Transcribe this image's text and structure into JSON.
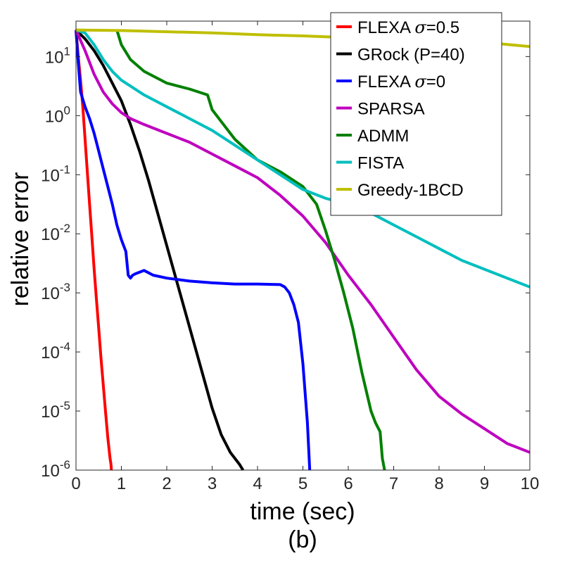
{
  "chart_data": {
    "type": "line",
    "title": "",
    "xlabel": "time (sec)",
    "ylabel": "relative error",
    "caption": "(b)",
    "xlim": [
      0,
      10
    ],
    "ylim_log10": [
      -6,
      1.6
    ],
    "yscale": "log",
    "grid": false,
    "legend_position": "top-right",
    "x_ticks": [
      "0",
      "1",
      "2",
      "3",
      "4",
      "5",
      "6",
      "7",
      "8",
      "9",
      "10"
    ],
    "y_ticks": [
      {
        "base": "10",
        "exp": "1"
      },
      {
        "base": "10",
        "exp": "0"
      },
      {
        "base": "10",
        "exp": "-1"
      },
      {
        "base": "10",
        "exp": "-2"
      },
      {
        "base": "10",
        "exp": "-3"
      },
      {
        "base": "10",
        "exp": "-4"
      },
      {
        "base": "10",
        "exp": "-5"
      },
      {
        "base": "10",
        "exp": "-6"
      }
    ],
    "series": [
      {
        "name": "FLEXA σ=0.5",
        "label_prefix": "FLEXA ",
        "label_symbol": "σ",
        "label_suffix": "=0.5",
        "color": "#ff0000",
        "x": [
          0,
          0.05,
          0.1,
          0.15,
          0.2,
          0.25,
          0.3,
          0.35,
          0.4,
          0.45,
          0.5,
          0.55,
          0.6,
          0.65,
          0.7,
          0.75,
          0.77,
          0.78
        ],
        "log10_y": [
          1.45,
          1.0,
          0.6,
          0.15,
          -0.4,
          -0.95,
          -1.5,
          -2.05,
          -2.6,
          -3.1,
          -3.6,
          -4.1,
          -4.55,
          -5.0,
          -5.45,
          -5.8,
          -5.9,
          -6.0
        ]
      },
      {
        "name": "GRock (P=40)",
        "label": "GRock (P=40)",
        "color": "#000000",
        "x": [
          0,
          0.2,
          0.4,
          0.6,
          0.8,
          1.0,
          1.2,
          1.4,
          1.6,
          1.8,
          2.0,
          2.2,
          2.4,
          2.6,
          2.8,
          3.0,
          3.2,
          3.4,
          3.6,
          3.68
        ],
        "log10_y": [
          1.45,
          1.3,
          1.1,
          0.85,
          0.55,
          0.25,
          -0.15,
          -0.6,
          -1.1,
          -1.65,
          -2.2,
          -2.75,
          -3.3,
          -3.85,
          -4.4,
          -4.95,
          -5.4,
          -5.7,
          -5.9,
          -6.0
        ]
      },
      {
        "name": "FLEXA σ=0",
        "label_prefix": "FLEXA ",
        "label_symbol": "σ",
        "label_suffix": "=0",
        "color": "#0000ff",
        "x": [
          0,
          0.05,
          0.1,
          0.2,
          0.3,
          0.4,
          0.5,
          0.6,
          0.7,
          0.8,
          0.9,
          1.0,
          1.1,
          1.15,
          1.2,
          1.25,
          1.3,
          1.4,
          1.5,
          1.7,
          2.0,
          2.5,
          3.0,
          3.5,
          4.0,
          4.5,
          4.6,
          4.7,
          4.8,
          4.9,
          5.0,
          5.1,
          5.15
        ],
        "log10_y": [
          1.45,
          0.9,
          0.4,
          0.15,
          -0.05,
          -0.3,
          -0.6,
          -0.9,
          -1.2,
          -1.5,
          -1.85,
          -2.1,
          -2.3,
          -2.7,
          -2.75,
          -2.7,
          -2.68,
          -2.65,
          -2.62,
          -2.7,
          -2.75,
          -2.8,
          -2.83,
          -2.85,
          -2.85,
          -2.86,
          -2.9,
          -3.0,
          -3.2,
          -3.5,
          -4.2,
          -5.2,
          -6.0
        ]
      },
      {
        "name": "SPARSA",
        "label": "SPARSA",
        "color": "#bf00bf",
        "x": [
          0,
          0.2,
          0.4,
          0.6,
          0.8,
          1.0,
          1.2,
          1.5,
          2.0,
          2.5,
          3.0,
          3.5,
          4.0,
          4.5,
          5.0,
          5.5,
          6.0,
          6.5,
          7.0,
          7.5,
          8.0,
          8.5,
          9.0,
          9.5,
          10.0
        ],
        "log10_y": [
          1.45,
          1.1,
          0.7,
          0.4,
          0.2,
          0.05,
          -0.05,
          -0.15,
          -0.3,
          -0.45,
          -0.65,
          -0.85,
          -1.05,
          -1.35,
          -1.7,
          -2.15,
          -2.7,
          -3.2,
          -3.75,
          -4.3,
          -4.75,
          -5.05,
          -5.3,
          -5.55,
          -5.7
        ]
      },
      {
        "name": "ADMM",
        "label": "ADMM",
        "color": "#008000",
        "x": [
          0.9,
          1.0,
          1.2,
          1.5,
          2.0,
          2.5,
          2.9,
          3.0,
          3.2,
          3.5,
          4.0,
          4.5,
          5.0,
          5.3,
          5.5,
          5.7,
          5.9,
          6.1,
          6.3,
          6.5,
          6.6,
          6.7,
          6.75,
          6.8
        ],
        "log10_y": [
          1.45,
          1.2,
          0.95,
          0.75,
          0.55,
          0.45,
          0.35,
          0.1,
          -0.1,
          -0.4,
          -0.75,
          -0.95,
          -1.2,
          -1.5,
          -1.95,
          -2.45,
          -3.0,
          -3.6,
          -4.35,
          -5.0,
          -5.2,
          -5.35,
          -5.8,
          -6.0
        ]
      },
      {
        "name": "FISTA",
        "label": "FISTA",
        "color": "#00bfbf",
        "x": [
          0,
          0.2,
          0.4,
          0.6,
          0.8,
          1.0,
          1.5,
          2.0,
          2.5,
          3.0,
          3.5,
          4.0,
          4.5,
          5.0,
          5.5,
          6.0,
          6.5,
          7.0,
          7.5,
          8.0,
          8.5,
          9.0,
          9.5,
          10.0
        ],
        "log10_y": [
          1.45,
          1.4,
          1.2,
          0.95,
          0.75,
          0.6,
          0.35,
          0.15,
          -0.05,
          -0.25,
          -0.5,
          -0.75,
          -1.0,
          -1.25,
          -1.4,
          -1.5,
          -1.65,
          -1.85,
          -2.05,
          -2.25,
          -2.45,
          -2.6,
          -2.75,
          -2.9
        ]
      },
      {
        "name": "Greedy-1BCD",
        "label": "Greedy-1BCD",
        "color": "#bfbf00",
        "x": [
          0,
          1,
          2,
          3,
          4,
          5,
          6,
          7,
          8,
          9,
          10
        ],
        "log10_y": [
          1.45,
          1.44,
          1.42,
          1.4,
          1.37,
          1.35,
          1.32,
          1.3,
          1.27,
          1.24,
          1.17
        ]
      }
    ]
  }
}
